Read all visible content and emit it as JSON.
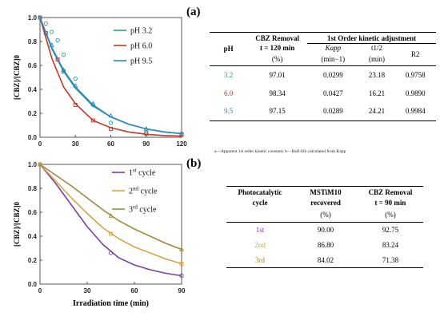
{
  "panel_a_label": "(a)",
  "panel_b_label": "(b)",
  "chart_data": [
    {
      "type": "line",
      "ylabel": "[CBZ]/[CBZ]0",
      "xlabel": "",
      "xlim": [
        0,
        120
      ],
      "ylim": [
        0,
        1
      ],
      "xticks": [
        0,
        30,
        60,
        90,
        120
      ],
      "yticks": [
        0,
        0.2,
        0.4,
        0.6,
        0.8,
        1
      ],
      "grid": false,
      "legend_position": "top-right",
      "series": [
        {
          "name": "pH 3.2",
          "color": "#2a9d8f",
          "marker": "circle",
          "points": [
            [
              0,
              1.0
            ],
            [
              5,
              0.95
            ],
            [
              10,
              0.88
            ],
            [
              15,
              0.81
            ],
            [
              20,
              0.69
            ],
            [
              30,
              0.49
            ],
            [
              45,
              0.27
            ],
            [
              60,
              0.12
            ],
            [
              90,
              0.04
            ],
            [
              120,
              0.03
            ]
          ],
          "fit": [
            [
              0,
              1.0
            ],
            [
              10,
              0.74
            ],
            [
              20,
              0.55
            ],
            [
              30,
              0.41
            ],
            [
              45,
              0.26
            ],
            [
              60,
              0.17
            ],
            [
              75,
              0.11
            ],
            [
              90,
              0.07
            ],
            [
              105,
              0.045
            ],
            [
              120,
              0.03
            ]
          ]
        },
        {
          "name": "pH 6.0",
          "color": "#c0392b",
          "marker": "square",
          "points": [
            [
              0,
              1.0
            ],
            [
              5,
              0.87
            ],
            [
              15,
              0.65
            ],
            [
              20,
              0.55
            ],
            [
              30,
              0.27
            ],
            [
              45,
              0.14
            ],
            [
              60,
              0.07
            ],
            [
              90,
              0.03
            ],
            [
              120,
              0.02
            ]
          ],
          "fit": [
            [
              0,
              1.0
            ],
            [
              10,
              0.66
            ],
            [
              20,
              0.42
            ],
            [
              30,
              0.28
            ],
            [
              45,
              0.14
            ],
            [
              60,
              0.08
            ],
            [
              75,
              0.045
            ],
            [
              90,
              0.025
            ],
            [
              105,
              0.015
            ],
            [
              120,
              0.01
            ]
          ]
        },
        {
          "name": "pH 9.5",
          "color": "#2e86c1",
          "marker": "triangle",
          "points": [
            [
              0,
              1.0
            ],
            [
              10,
              0.77
            ],
            [
              20,
              0.56
            ],
            [
              30,
              0.43
            ],
            [
              45,
              0.28
            ],
            [
              60,
              0.18
            ],
            [
              90,
              0.07
            ],
            [
              120,
              0.03
            ]
          ],
          "fit": [
            [
              0,
              1.0
            ],
            [
              10,
              0.75
            ],
            [
              20,
              0.56
            ],
            [
              30,
              0.42
            ],
            [
              45,
              0.27
            ],
            [
              60,
              0.17
            ],
            [
              75,
              0.11
            ],
            [
              90,
              0.07
            ],
            [
              105,
              0.045
            ],
            [
              120,
              0.03
            ]
          ]
        }
      ]
    },
    {
      "type": "line",
      "ylabel": "[CBZ]/[CBZ]0",
      "xlabel": "Irradiation time (min)",
      "xlim": [
        0,
        90
      ],
      "ylim": [
        0,
        1
      ],
      "xticks": [
        0,
        30,
        60,
        90
      ],
      "yticks": [
        0,
        0.2,
        0.4,
        0.6,
        0.8,
        1
      ],
      "grid": false,
      "legend_position": "top-right",
      "series": [
        {
          "name": "1st cycle",
          "color": "#7b3fa0",
          "marker": "circle",
          "points": [
            [
              0,
              1.0
            ],
            [
              45,
              0.26
            ],
            [
              90,
              0.07
            ]
          ],
          "curve": [
            [
              0,
              1.0
            ],
            [
              10,
              0.84
            ],
            [
              20,
              0.66
            ],
            [
              30,
              0.48
            ],
            [
              40,
              0.33
            ],
            [
              50,
              0.22
            ],
            [
              60,
              0.16
            ],
            [
              70,
              0.12
            ],
            [
              80,
              0.09
            ],
            [
              90,
              0.07
            ]
          ]
        },
        {
          "name": "2nd cycle",
          "color": "#d4a54a",
          "marker": "square",
          "points": [
            [
              0,
              1.0
            ],
            [
              45,
              0.42
            ],
            [
              90,
              0.17
            ]
          ],
          "curve": [
            [
              0,
              1.0
            ],
            [
              10,
              0.86
            ],
            [
              20,
              0.72
            ],
            [
              30,
              0.59
            ],
            [
              40,
              0.47
            ],
            [
              50,
              0.38
            ],
            [
              60,
              0.31
            ],
            [
              70,
              0.26
            ],
            [
              80,
              0.21
            ],
            [
              90,
              0.17
            ]
          ]
        },
        {
          "name": "3rd cycle",
          "color": "#a08a3c",
          "marker": "triangle",
          "points": [
            [
              0,
              1.0
            ],
            [
              45,
              0.57
            ],
            [
              90,
              0.29
            ]
          ],
          "curve": [
            [
              0,
              1.0
            ],
            [
              10,
              0.91
            ],
            [
              20,
              0.82
            ],
            [
              30,
              0.72
            ],
            [
              40,
              0.62
            ],
            [
              50,
              0.53
            ],
            [
              60,
              0.46
            ],
            [
              70,
              0.4
            ],
            [
              80,
              0.34
            ],
            [
              90,
              0.29
            ]
          ]
        }
      ]
    }
  ],
  "table_a": {
    "h_ph": "pH",
    "h_removal_1": "CBZ Removal",
    "h_removal_2": "t = 120 min",
    "h_removal_unit": "(%)",
    "h_kinetic": "1st Order kinetic adjustment",
    "h_kapp": "Kapp",
    "h_kapp_unit": "(min−1)",
    "h_thalf": "t1/2",
    "h_thalf_unit": "(min)",
    "h_r2": "R2",
    "rows": [
      {
        "ph": "3.2",
        "color": "#2a9d8f",
        "removal": "97.01",
        "kapp": "0.0299",
        "thalf": "23.18",
        "r2": "0.9758"
      },
      {
        "ph": "6.0",
        "color": "#c0392b",
        "removal": "98.34",
        "kapp": "0.0427",
        "thalf": "16.21",
        "r2": "0.9890"
      },
      {
        "ph": "9.5",
        "color": "#2e86c1",
        "removal": "97.15",
        "kapp": "0.0289",
        "thalf": "24.21",
        "r2": "0.9984"
      }
    ],
    "footnote": "a—Apparent 1st order kinetic constant; b—Half-life calculated from Kapp"
  },
  "table_b": {
    "h_cycle_1": "Photocatalytic",
    "h_cycle_2": "cycle",
    "h_recovered_1": "MSTiM10",
    "h_recovered_2": "recovered",
    "h_recovered_unit": "(%)",
    "h_removal_1": "CBZ Removal",
    "h_removal_2": "t = 90 min",
    "h_removal_unit": "(%)",
    "rows": [
      {
        "cycle": "1st",
        "color": "#7b3fa0",
        "recovered": "90.00",
        "removal": "92.75"
      },
      {
        "cycle": "2nd",
        "color": "#d4a54a",
        "recovered": "86.80",
        "removal": "83.24"
      },
      {
        "cycle": "3rd",
        "color": "#a08a3c",
        "recovered": "84.02",
        "removal": "71.38"
      }
    ]
  }
}
